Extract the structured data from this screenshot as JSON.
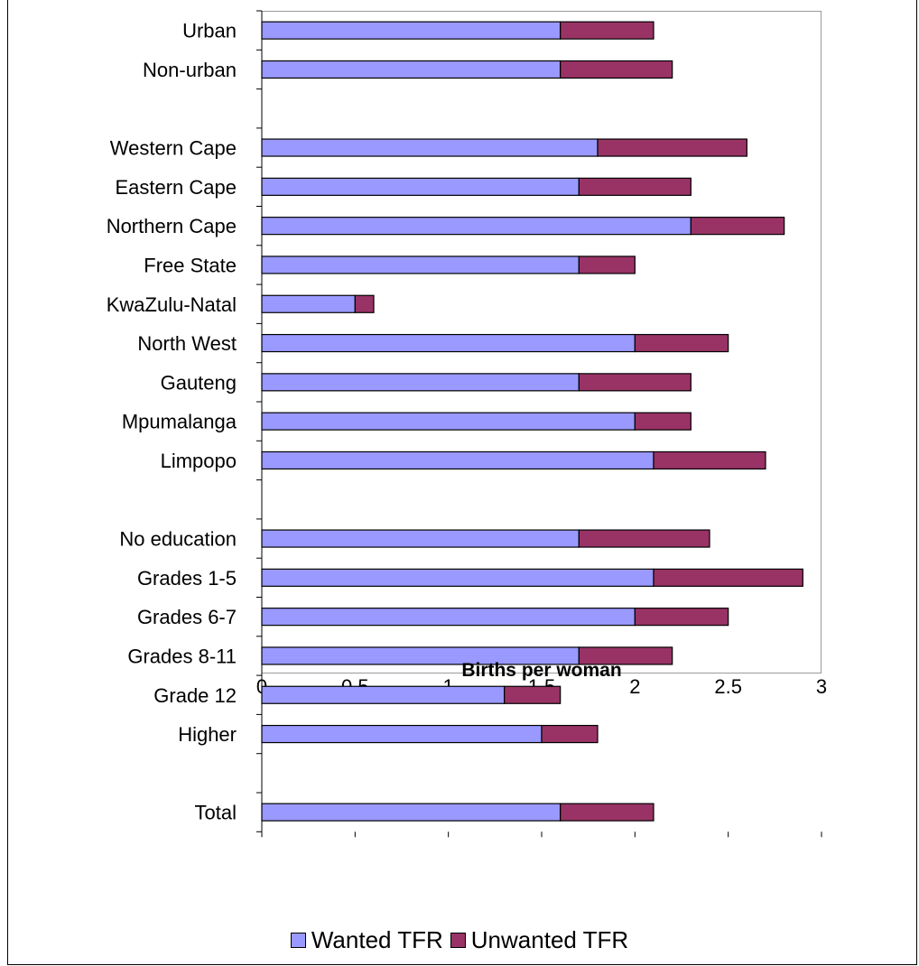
{
  "chart_data": {
    "type": "bar",
    "orientation": "horizontal",
    "stacked": true,
    "categories": [
      "Urban",
      "Non-urban",
      "",
      "Western Cape",
      "Eastern Cape",
      "Northern Cape",
      "Free State",
      "KwaZulu-Natal",
      "North West",
      "Gauteng",
      "Mpumalanga",
      "Limpopo",
      "",
      "No education",
      "Grades 1-5",
      "Grades 6-7",
      "Grades 8-11",
      "Grade 12",
      "Higher",
      "",
      "Total"
    ],
    "series": [
      {
        "name": "Wanted TFR",
        "color": "#9999ff",
        "values": [
          1.6,
          1.6,
          null,
          1.8,
          1.7,
          2.3,
          1.7,
          0.5,
          2.0,
          1.7,
          2.0,
          2.1,
          null,
          1.7,
          2.1,
          2.0,
          1.7,
          1.3,
          1.5,
          null,
          1.6
        ]
      },
      {
        "name": "Unwanted TFR",
        "color": "#993366",
        "values": [
          0.5,
          0.6,
          null,
          0.8,
          0.6,
          0.5,
          0.3,
          0.1,
          0.5,
          0.6,
          0.3,
          0.6,
          null,
          0.7,
          0.8,
          0.5,
          0.5,
          0.3,
          0.3,
          null,
          0.5
        ]
      }
    ],
    "xlabel": "Births per woman",
    "xlim": [
      0,
      3
    ],
    "xticks": [
      "0",
      "0.5",
      "1",
      "1.5",
      "2",
      "2.5",
      "3"
    ],
    "grid": false,
    "legend": "bottom"
  }
}
